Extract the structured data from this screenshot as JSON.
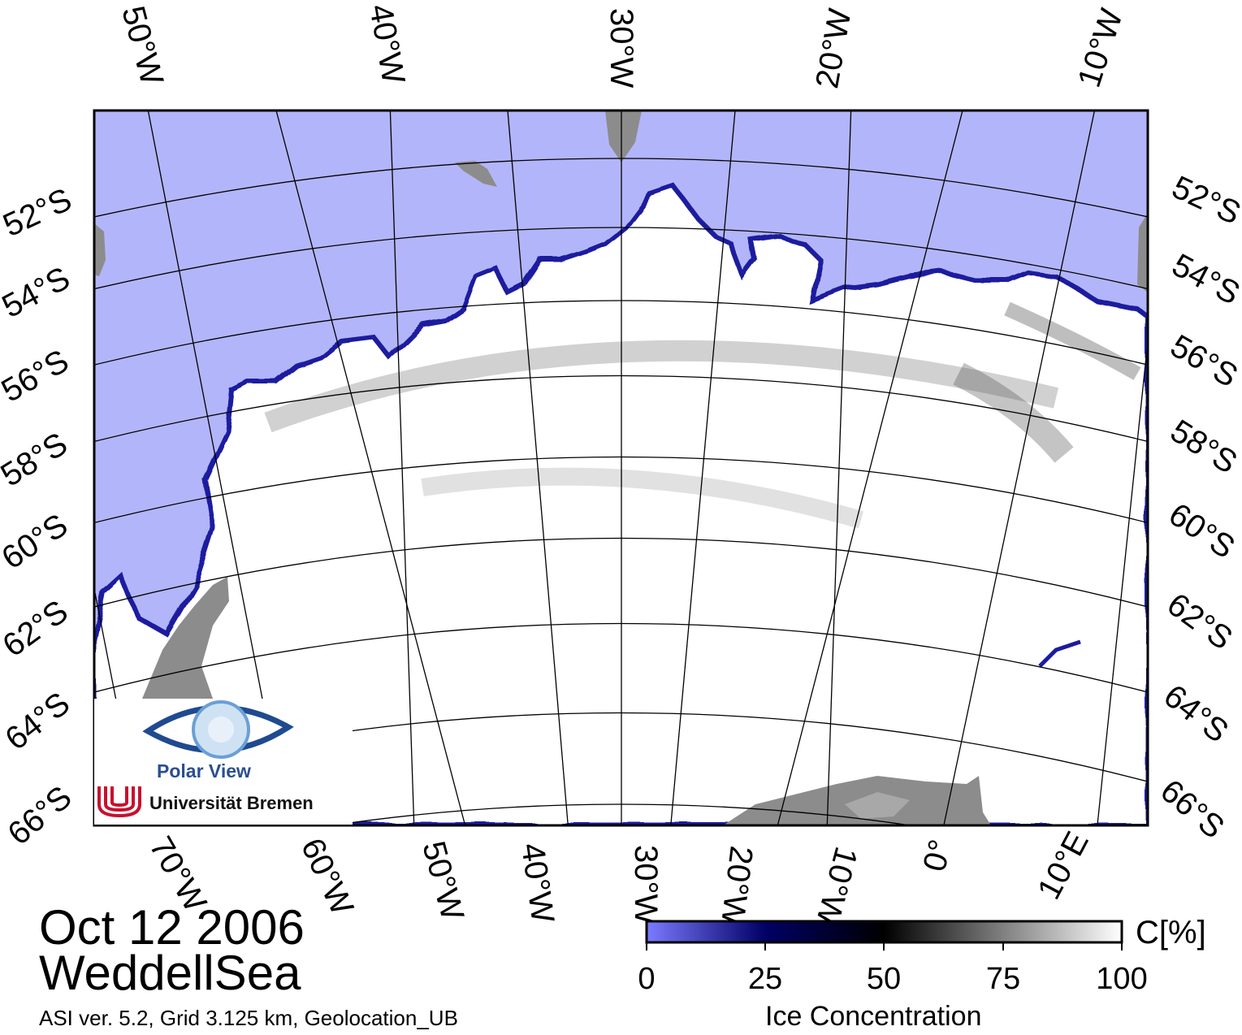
{
  "map": {
    "lon_labels_top": [
      "50°W",
      "40°W",
      "30°W",
      "20°W",
      "10°W"
    ],
    "lon_labels_bottom": [
      "70°W",
      "60°W",
      "50°W",
      "40°W",
      "30°W",
      "20°W",
      "10°W",
      "0°",
      "10°E"
    ],
    "lat_labels_left": [
      "52°S",
      "54°S",
      "56°S",
      "58°S",
      "60°S",
      "62°S",
      "64°S",
      "66°S"
    ],
    "lat_labels_right": [
      "52°S",
      "54°S",
      "56°S",
      "58°S",
      "60°S",
      "62°S",
      "64°S",
      "66°S"
    ],
    "colors": {
      "open_water": "#b3b5fa",
      "ice_edge": "#1c1c9e",
      "full_ice": "#ffffff",
      "land": "#8c8c8c",
      "graticule": "#000000"
    }
  },
  "date": "Oct 12 2006",
  "region": "WeddellSea",
  "metadata_line": "ASI ver. 5.2,  Grid 3.125 km, Geolocation_UB",
  "colorbar": {
    "title": "Ice Concentration",
    "unit": "C[%]",
    "ticks": [
      "0",
      "25",
      "50",
      "75",
      "100"
    ],
    "stops": [
      "#7b7bff",
      "#000066",
      "#000000",
      "#808080",
      "#ffffff"
    ]
  },
  "logo": {
    "title": "Polar View",
    "institution": "Universität Bremen"
  }
}
